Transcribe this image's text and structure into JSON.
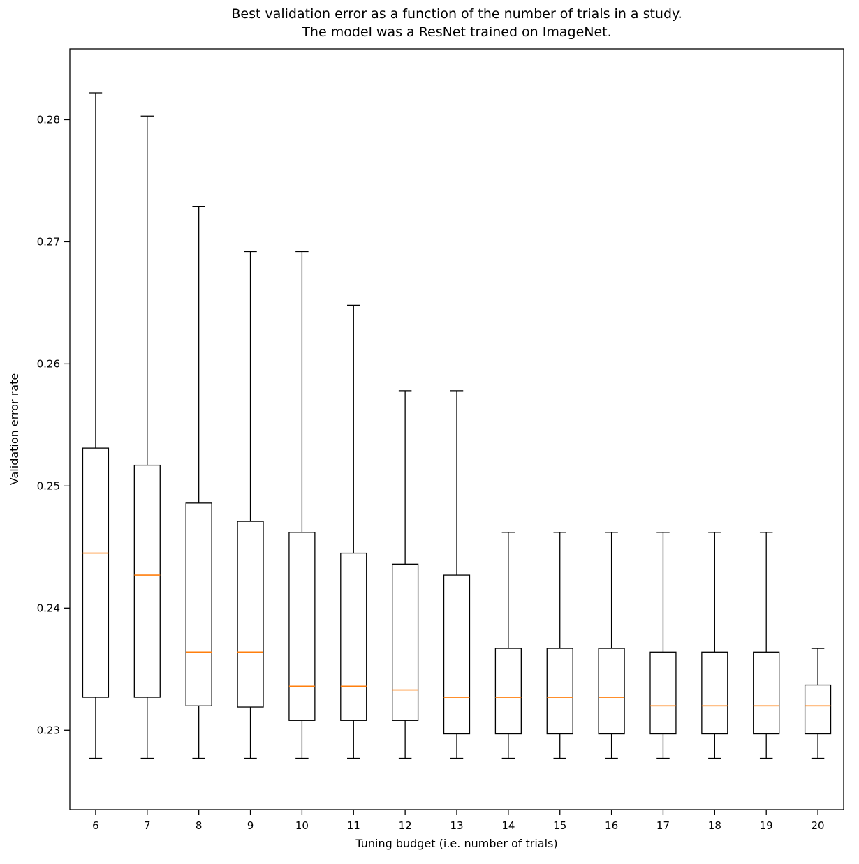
{
  "title": {
    "line1": "Best validation error as a function of the number of trials in a study.",
    "line2": "The model was a ResNet trained on ImageNet."
  },
  "chart_data": {
    "type": "boxplot",
    "title": "Best validation error as a function of the number of trials in a study. The model was a ResNet trained on ImageNet.",
    "xlabel": "Tuning budget (i.e. number of trials)",
    "ylabel": "Validation error rate",
    "categories": [
      "6",
      "7",
      "8",
      "9",
      "10",
      "11",
      "12",
      "13",
      "14",
      "15",
      "16",
      "17",
      "18",
      "19",
      "20"
    ],
    "yticks": [
      0.23,
      0.24,
      0.25,
      0.26,
      0.27,
      0.28
    ],
    "ylim": [
      0.2235,
      0.2858
    ],
    "grid": false,
    "legend": "none",
    "box_stroke_color": "#000000",
    "median_color": "#ff7f0e",
    "boxes": [
      {
        "category": "6",
        "whisker_low": 0.2277,
        "q1": 0.2327,
        "median": 0.2445,
        "q3": 0.2531,
        "whisker_high": 0.2822
      },
      {
        "category": "7",
        "whisker_low": 0.2277,
        "q1": 0.2327,
        "median": 0.2427,
        "q3": 0.2517,
        "whisker_high": 0.2803
      },
      {
        "category": "8",
        "whisker_low": 0.2277,
        "q1": 0.232,
        "median": 0.2364,
        "q3": 0.2486,
        "whisker_high": 0.2729
      },
      {
        "category": "9",
        "whisker_low": 0.2277,
        "q1": 0.2319,
        "median": 0.2364,
        "q3": 0.2471,
        "whisker_high": 0.2692
      },
      {
        "category": "10",
        "whisker_low": 0.2277,
        "q1": 0.2308,
        "median": 0.2336,
        "q3": 0.2462,
        "whisker_high": 0.2692
      },
      {
        "category": "11",
        "whisker_low": 0.2277,
        "q1": 0.2308,
        "median": 0.2336,
        "q3": 0.2445,
        "whisker_high": 0.2648
      },
      {
        "category": "12",
        "whisker_low": 0.2277,
        "q1": 0.2308,
        "median": 0.2333,
        "q3": 0.2436,
        "whisker_high": 0.2578
      },
      {
        "category": "13",
        "whisker_low": 0.2277,
        "q1": 0.2297,
        "median": 0.2327,
        "q3": 0.2427,
        "whisker_high": 0.2578
      },
      {
        "category": "14",
        "whisker_low": 0.2277,
        "q1": 0.2297,
        "median": 0.2327,
        "q3": 0.2367,
        "whisker_high": 0.2462
      },
      {
        "category": "15",
        "whisker_low": 0.2277,
        "q1": 0.2297,
        "median": 0.2327,
        "q3": 0.2367,
        "whisker_high": 0.2462
      },
      {
        "category": "16",
        "whisker_low": 0.2277,
        "q1": 0.2297,
        "median": 0.2327,
        "q3": 0.2367,
        "whisker_high": 0.2462
      },
      {
        "category": "17",
        "whisker_low": 0.2277,
        "q1": 0.2297,
        "median": 0.232,
        "q3": 0.2364,
        "whisker_high": 0.2462
      },
      {
        "category": "18",
        "whisker_low": 0.2277,
        "q1": 0.2297,
        "median": 0.232,
        "q3": 0.2364,
        "whisker_high": 0.2462
      },
      {
        "category": "19",
        "whisker_low": 0.2277,
        "q1": 0.2297,
        "median": 0.232,
        "q3": 0.2364,
        "whisker_high": 0.2462
      },
      {
        "category": "20",
        "whisker_low": 0.2277,
        "q1": 0.2297,
        "median": 0.232,
        "q3": 0.2337,
        "whisker_high": 0.2367
      }
    ]
  }
}
